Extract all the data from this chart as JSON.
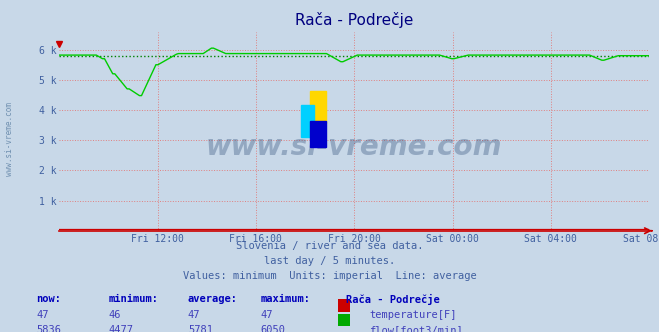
{
  "title": "Rača - Podrečje",
  "bg_color": "#c8d8e8",
  "plot_bg_color": "#c8d8e8",
  "grid_color": "#e08080",
  "grid_style": ":",
  "x_labels": [
    "Fri 12:00",
    "Fri 16:00",
    "Fri 20:00",
    "Sat 00:00",
    "Sat 04:00",
    "Sat 08:00"
  ],
  "ylim": [
    0,
    6600
  ],
  "yticks": [
    0,
    1000,
    2000,
    3000,
    4000,
    5000,
    6000
  ],
  "ytick_labels": [
    "",
    "1 k",
    "2 k",
    "3 k",
    "4 k",
    "5 k",
    "6 k"
  ],
  "avg_flow": 5781,
  "min_flow": 4477,
  "max_flow": 6050,
  "flow_color": "#00cc00",
  "avg_color": "#008000",
  "temp_color": "#cc0000",
  "avg_temp": 47,
  "caption_line1": "Slovenia / river and sea data.",
  "caption_line2": "last day / 5 minutes.",
  "caption_line3": "Values: minimum  Units: imperial  Line: average",
  "table_headers": [
    "now:",
    "minimum:",
    "average:",
    "maximum:",
    "Rača - Podrečje"
  ],
  "table_row1": [
    "47",
    "46",
    "47",
    "47"
  ],
  "table_row2": [
    "5836",
    "4477",
    "5781",
    "6050"
  ],
  "label_temp": "temperature[F]",
  "label_flow": "flow[foot3/min]",
  "watermark": "www.si-vreme.com",
  "title_color": "#000080",
  "axis_label_color": "#4060a0",
  "caption_color": "#4060a0",
  "table_header_color": "#0000bb",
  "table_val_color": "#4040bb",
  "side_watermark_color": "#7090b0"
}
